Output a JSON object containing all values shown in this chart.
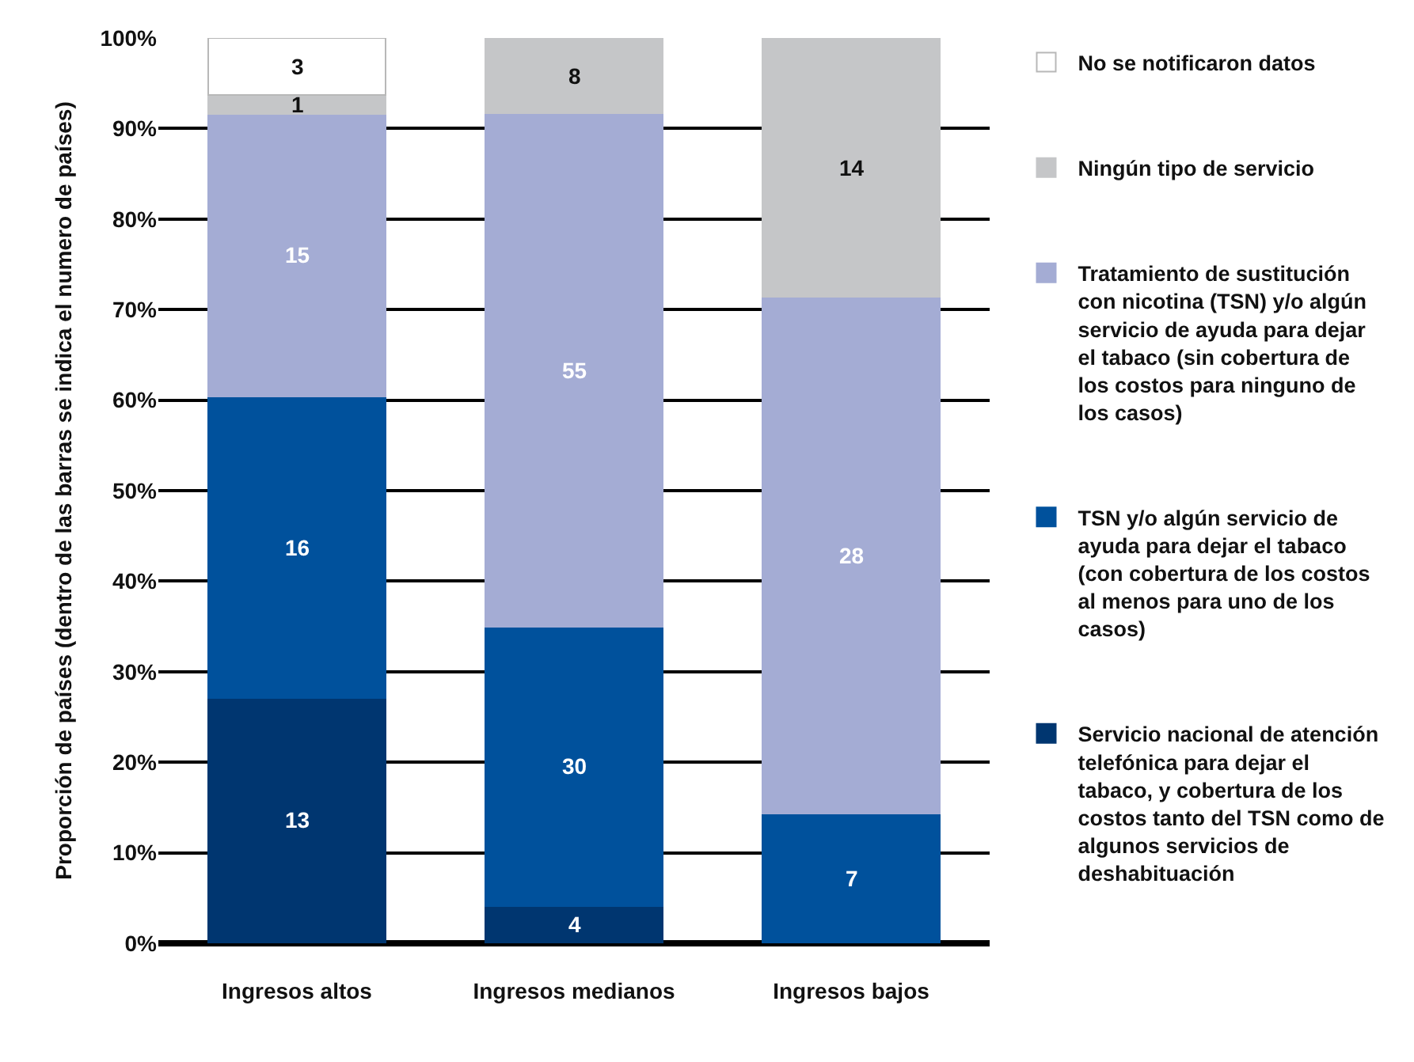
{
  "chart_data": {
    "type": "bar",
    "stacked": true,
    "ylabel": "Proporción de países (dentro de las barras se indica el numero de países)",
    "categories": [
      "Ingresos altos",
      "Ingresos medianos",
      "Ingresos bajos"
    ],
    "ylim": [
      0,
      100
    ],
    "yticks": [
      {
        "value": 0,
        "label": "0%"
      },
      {
        "value": 10,
        "label": "10%"
      },
      {
        "value": 20,
        "label": "20%"
      },
      {
        "value": 30,
        "label": "30%"
      },
      {
        "value": 40,
        "label": "40%"
      },
      {
        "value": 50,
        "label": "50%"
      },
      {
        "value": 60,
        "label": "60%"
      },
      {
        "value": 70,
        "label": "70%"
      },
      {
        "value": 80,
        "label": "80%"
      },
      {
        "value": 90,
        "label": "90%"
      },
      {
        "value": 100,
        "label": "100%"
      }
    ],
    "grid": "y",
    "legend": "right",
    "series": [
      {
        "name": "Servicio nacional de atención telefónica para dejar el tabaco, y cobertura de los costos tanto del TSN como de algunos servicios de deshabituación",
        "color": "#003670",
        "values": [
          27.1,
          4.1,
          null
        ]
      },
      {
        "name": "TSN y/o algún servicio de ayuda para dejar el tabaco (con cobertura de los costos al menos para uno de los casos)",
        "color": "#00519c",
        "values": [
          33.3,
          30.9,
          14.3
        ]
      },
      {
        "name": "Tratamiento de sustitución con nicotina (TSN) y/o algún servicio de ayuda para dejar el tabaco (sin cobertura de los costos para ninguno de los casos)",
        "color": "#a4acd4",
        "values": [
          31.2,
          56.7,
          57.1
        ]
      },
      {
        "name": "Ningún tipo de servicio",
        "color": "#c5c6c8",
        "values": [
          2.1,
          8.3,
          28.6
        ]
      },
      {
        "name": "No se notificaron datos",
        "color": "#ffffff",
        "values": [
          6.3,
          null,
          null
        ]
      }
    ],
    "annotations": [
      "13",
      "16",
      "15",
      "1",
      "3",
      "4",
      "30",
      "55",
      "8",
      "7",
      "28",
      "14"
    ]
  }
}
